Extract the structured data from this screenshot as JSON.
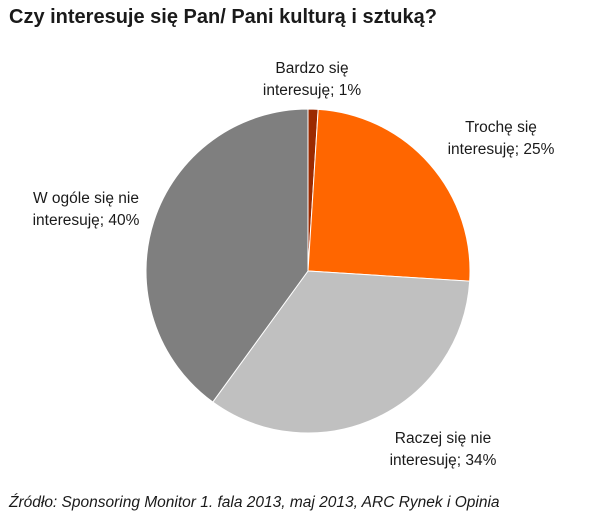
{
  "chart_data": {
    "type": "pie",
    "title": "Czy interesuje się Pan/ Pani kulturą i sztuką?",
    "slices": [
      {
        "label_line1": "Bardzo się",
        "label_line2": "interesuję; 1%",
        "value": 1,
        "color": "#9a2a00"
      },
      {
        "label_line1": "Trochę się",
        "label_line2": "interesuję; 25%",
        "value": 25,
        "color": "#ff6600"
      },
      {
        "label_line1": "Raczej się nie",
        "label_line2": "interesuję; 34%",
        "value": 34,
        "color": "#c0c0c0"
      },
      {
        "label_line1": "W ogóle się nie",
        "label_line2": "interesuję; 40%",
        "value": 40,
        "color": "#7f7f7f"
      }
    ]
  },
  "source": "Źródło: Sponsoring Monitor 1. fala 2013, maj 2013, ARC Rynek i Opinia"
}
